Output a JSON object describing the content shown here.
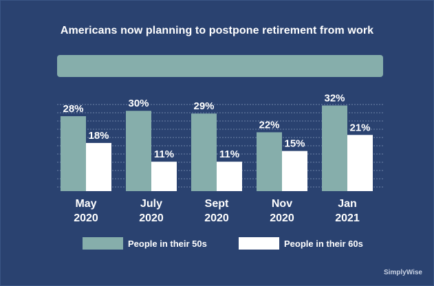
{
  "chart_data": {
    "type": "bar",
    "title": "Americans now planning to postpone retirement from work",
    "categories": [
      "May 2020",
      "July 2020",
      "Sept 2020",
      "Nov 2020",
      "Jan 2021"
    ],
    "category_lines": [
      [
        "May",
        "2020"
      ],
      [
        "July",
        "2020"
      ],
      [
        "Sept",
        "2020"
      ],
      [
        "Nov",
        "2020"
      ],
      [
        "Jan",
        "2021"
      ]
    ],
    "series": [
      {
        "name": "People in their 50s",
        "values": [
          28,
          30,
          29,
          22,
          32
        ],
        "labels": [
          "28%",
          "30%",
          "29%",
          "22%",
          "32%"
        ],
        "color": "#86aeab"
      },
      {
        "name": "People in their 60s",
        "values": [
          18,
          11,
          11,
          15,
          21
        ],
        "labels": [
          "18%",
          "11%",
          "11%",
          "15%",
          "21%"
        ],
        "color": "#ffffff"
      }
    ],
    "ylim": [
      0,
      37
    ],
    "grid": true,
    "legend_position": "bottom"
  },
  "colors": {
    "background": "#2a4270",
    "gridline": "#6f84a9",
    "text": "#ffffff"
  },
  "watermark": "SimplyWise"
}
